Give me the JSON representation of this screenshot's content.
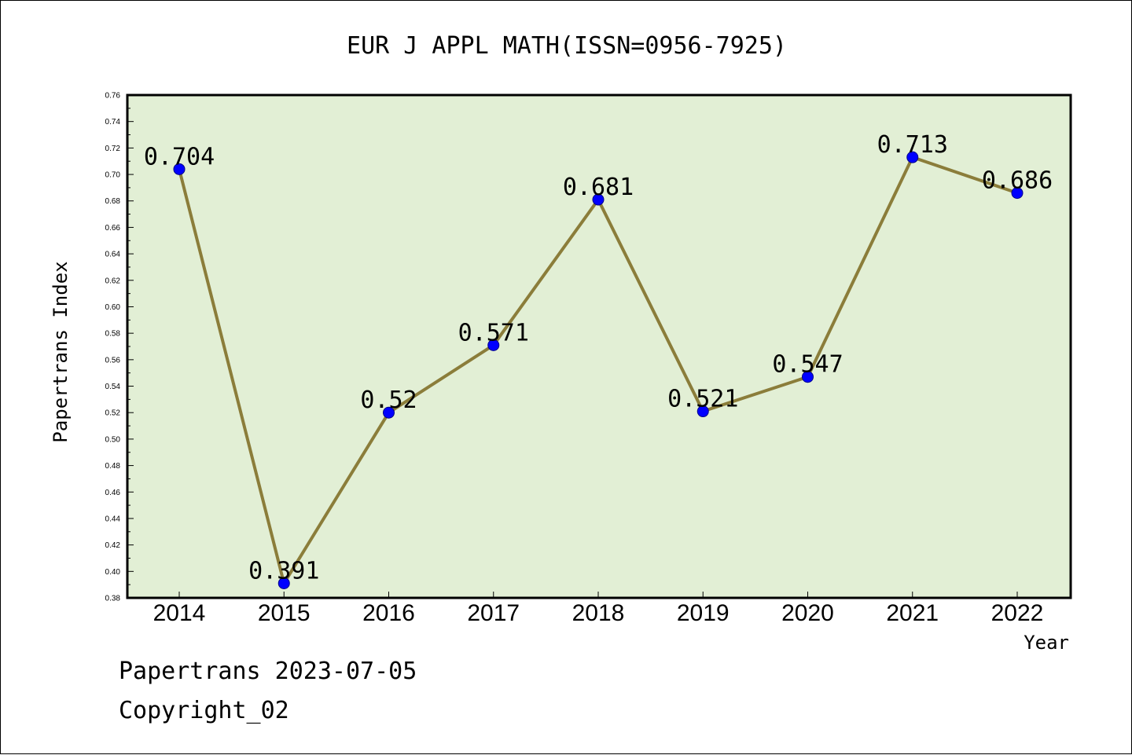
{
  "chart_data": {
    "type": "line",
    "title": "EUR J APPL MATH(ISSN=0956-7925)",
    "xlabel": "Year",
    "ylabel": "Papertrans Index",
    "categories": [
      "2014",
      "2015",
      "2016",
      "2017",
      "2018",
      "2019",
      "2020",
      "2021",
      "2022"
    ],
    "series": [
      {
        "values": [
          0.704,
          0.391,
          0.52,
          0.571,
          0.681,
          0.521,
          0.547,
          0.713,
          0.686
        ],
        "data_labels": [
          "0.704",
          "0.391",
          "0.52",
          "0.571",
          "0.681",
          "0.521",
          "0.547",
          "0.713",
          "0.686"
        ]
      }
    ],
    "ylim": [
      0.38,
      0.76
    ],
    "yticks": [
      "0.38",
      "0.40",
      "0.42",
      "0.44",
      "0.46",
      "0.48",
      "0.50",
      "0.52",
      "0.54",
      "0.56",
      "0.58",
      "0.60",
      "0.62",
      "0.64",
      "0.66",
      "0.68",
      "0.70",
      "0.72",
      "0.74",
      "0.76"
    ],
    "grid": false,
    "legend": "none",
    "colors": {
      "plot_background": "#e2efd5",
      "line": "#8b7d3a",
      "marker": "#0000ff"
    }
  },
  "footer": {
    "line1": "Papertrans 2023-07-05",
    "line2": "Copyright_02"
  }
}
